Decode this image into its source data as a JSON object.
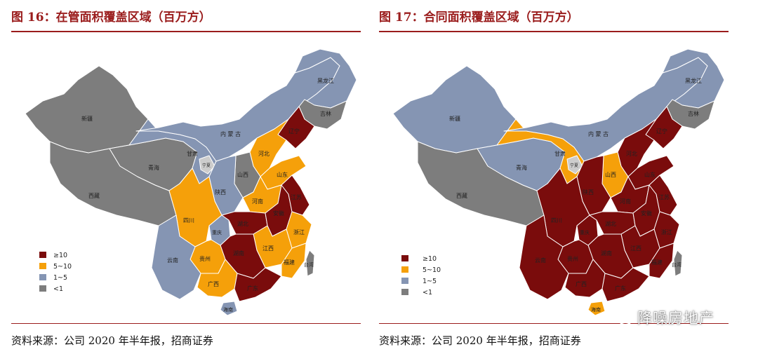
{
  "colors": {
    "ge10": "#7a0c0c",
    "five_to_ten": "#f5a00a",
    "one_to_five": "#8595b3",
    "lt1": "#7d7d7d",
    "accent": "#9a1c1c"
  },
  "legend": [
    "≥10",
    "5~10",
    "1~5",
    "<1"
  ],
  "figures": [
    {
      "title": "图 16：在管面积覆盖区域（百万方）",
      "source": "资料来源：公司 2020 年半年报，招商证券",
      "labels": {
        "xinjiang": "新疆",
        "xizang": "西藏",
        "qinghai": "青海",
        "gansu": "甘肃",
        "ningxia": "宁夏",
        "neimenggu": "内 蒙 古",
        "heilongjiang": "黑龙江",
        "jilin": "吉林",
        "liaoning": "辽宁",
        "hebei": "河北",
        "shanxi": "山西",
        "shandong": "山东",
        "henan": "河南",
        "shaanxi": "陕西",
        "sichuan": "四川",
        "chongqing": "重庆",
        "hubei": "湖北",
        "anhui": "安徽",
        "jiangsu": "江苏",
        "zhejiang": "浙江",
        "jiangxi": "江西",
        "hunan": "湖南",
        "fujian": "福建",
        "guizhou": "贵州",
        "yunnan": "云南",
        "guangxi": "广西",
        "guangdong": "广东",
        "hainan": "海南",
        "taiwan": "台湾"
      },
      "provinces": {
        "xinjiang": "lt1",
        "xizang": "lt1",
        "qinghai": "lt1",
        "gansu": "one_to_five",
        "neimenggu": "one_to_five",
        "heilongjiang": "one_to_five",
        "jilin": "lt1",
        "liaoning": "ge10",
        "hebei": "five_to_ten",
        "shanxi": "lt1",
        "shandong": "five_to_ten",
        "henan": "five_to_ten",
        "shaanxi": "one_to_five",
        "sichuan": "five_to_ten",
        "chongqing": "one_to_five",
        "hubei": "ge10",
        "anhui": "ge10",
        "jiangsu": "ge10",
        "zhejiang": "five_to_ten",
        "jiangxi": "five_to_ten",
        "hunan": "ge10",
        "fujian": "five_to_ten",
        "guizhou": "five_to_ten",
        "yunnan": "one_to_five",
        "guangxi": "five_to_ten",
        "guangdong": "ge10",
        "hainan": "one_to_five",
        "taiwan": "lt1"
      }
    },
    {
      "title": "图 17：合同面积覆盖区域（百万方）",
      "source": "资料来源：公司 2020 年半年报，招商证券",
      "labels": {
        "xinjiang": "新疆",
        "xizang": "西藏",
        "qinghai": "青海",
        "gansu": "甘肃",
        "ningxia": "宁夏",
        "neimenggu": "内 蒙 古",
        "heilongjiang": "黑龙江",
        "jilin": "吉林",
        "liaoning": "辽宁",
        "hebei": "河北",
        "shanxi": "山西",
        "shandong": "山东",
        "henan": "河南",
        "shaanxi": "陕西",
        "sichuan": "四川",
        "chongqing": "重庆",
        "hubei": "湖北",
        "anhui": "安徽",
        "jiangsu": "江苏",
        "zhejiang": "浙江",
        "jiangxi": "江西",
        "hunan": "湖南",
        "fujian": "福建",
        "guizhou": "贵州",
        "yunnan": "云南",
        "guangxi": "广西",
        "guangdong": "广东",
        "hainan": "海南",
        "taiwan": "台湾"
      },
      "provinces": {
        "xinjiang": "one_to_five",
        "xizang": "lt1",
        "qinghai": "one_to_five",
        "gansu": "five_to_ten",
        "neimenggu": "one_to_five",
        "heilongjiang": "one_to_five",
        "jilin": "lt1",
        "liaoning": "ge10",
        "hebei": "ge10",
        "shanxi": "five_to_ten",
        "shandong": "ge10",
        "henan": "ge10",
        "shaanxi": "ge10",
        "sichuan": "ge10",
        "chongqing": "ge10",
        "hubei": "ge10",
        "anhui": "ge10",
        "jiangsu": "ge10",
        "zhejiang": "ge10",
        "jiangxi": "ge10",
        "hunan": "ge10",
        "fujian": "ge10",
        "guizhou": "ge10",
        "yunnan": "ge10",
        "guangxi": "ge10",
        "guangdong": "ge10",
        "hainan": "five_to_ten",
        "taiwan": "lt1"
      }
    }
  ],
  "watermark": {
    "text": "降噪房地产",
    "icon": "wechat-icon"
  }
}
